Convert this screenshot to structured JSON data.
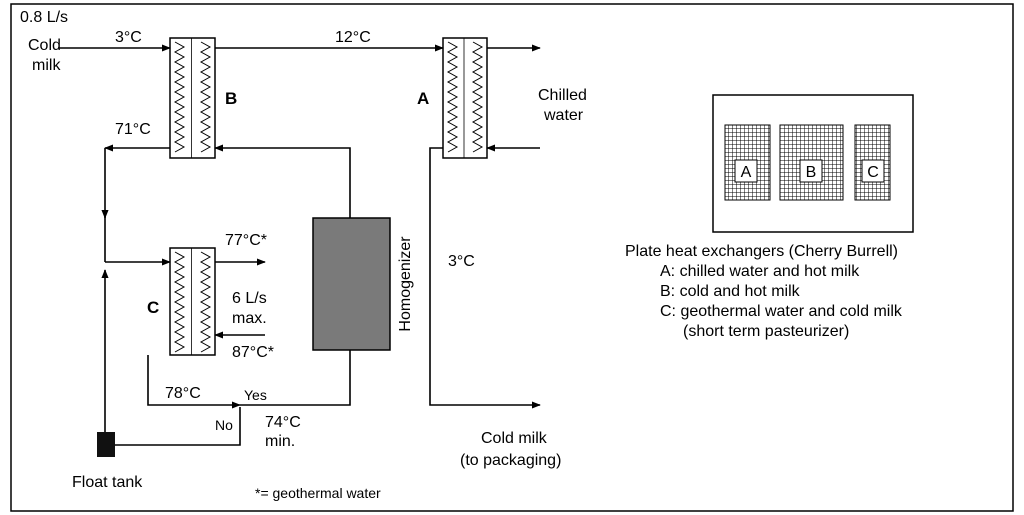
{
  "inlet": {
    "flow": "0.8 L/s",
    "name_lines": [
      "Cold",
      "milk"
    ]
  },
  "exchangers": {
    "a": "A",
    "b": "B",
    "c": "C"
  },
  "streams": {
    "milk_in_temp": "3°C",
    "b_to_a_temp": "12°C",
    "chilled_water": [
      "Chilled",
      "water"
    ],
    "b_out_temp": "71°C",
    "c_out_temp": "77°C*",
    "c_flow": [
      "6 L/s",
      "max."
    ],
    "c_in_temp": "87°C*",
    "c_milk_temp": "78°C",
    "valve_yes": "Yes",
    "valve_no": "No",
    "min_temp": [
      "74°C",
      "min."
    ],
    "cold_milk_temp": "3°C",
    "cold_milk_out": [
      "Cold milk",
      "(to packaging)"
    ]
  },
  "homogenizer": "Homogenizer",
  "float_tank": "Float tank",
  "footnote": "*= geothermal water",
  "legend": {
    "plates": [
      "A",
      "B",
      "C"
    ],
    "title": "Plate heat exchangers (Cherry Burrell)",
    "items": [
      "A: chilled water and hot milk",
      "B: cold and hot milk",
      "C: geothermal water and cold milk",
      "(short term pasteurizer)"
    ]
  }
}
